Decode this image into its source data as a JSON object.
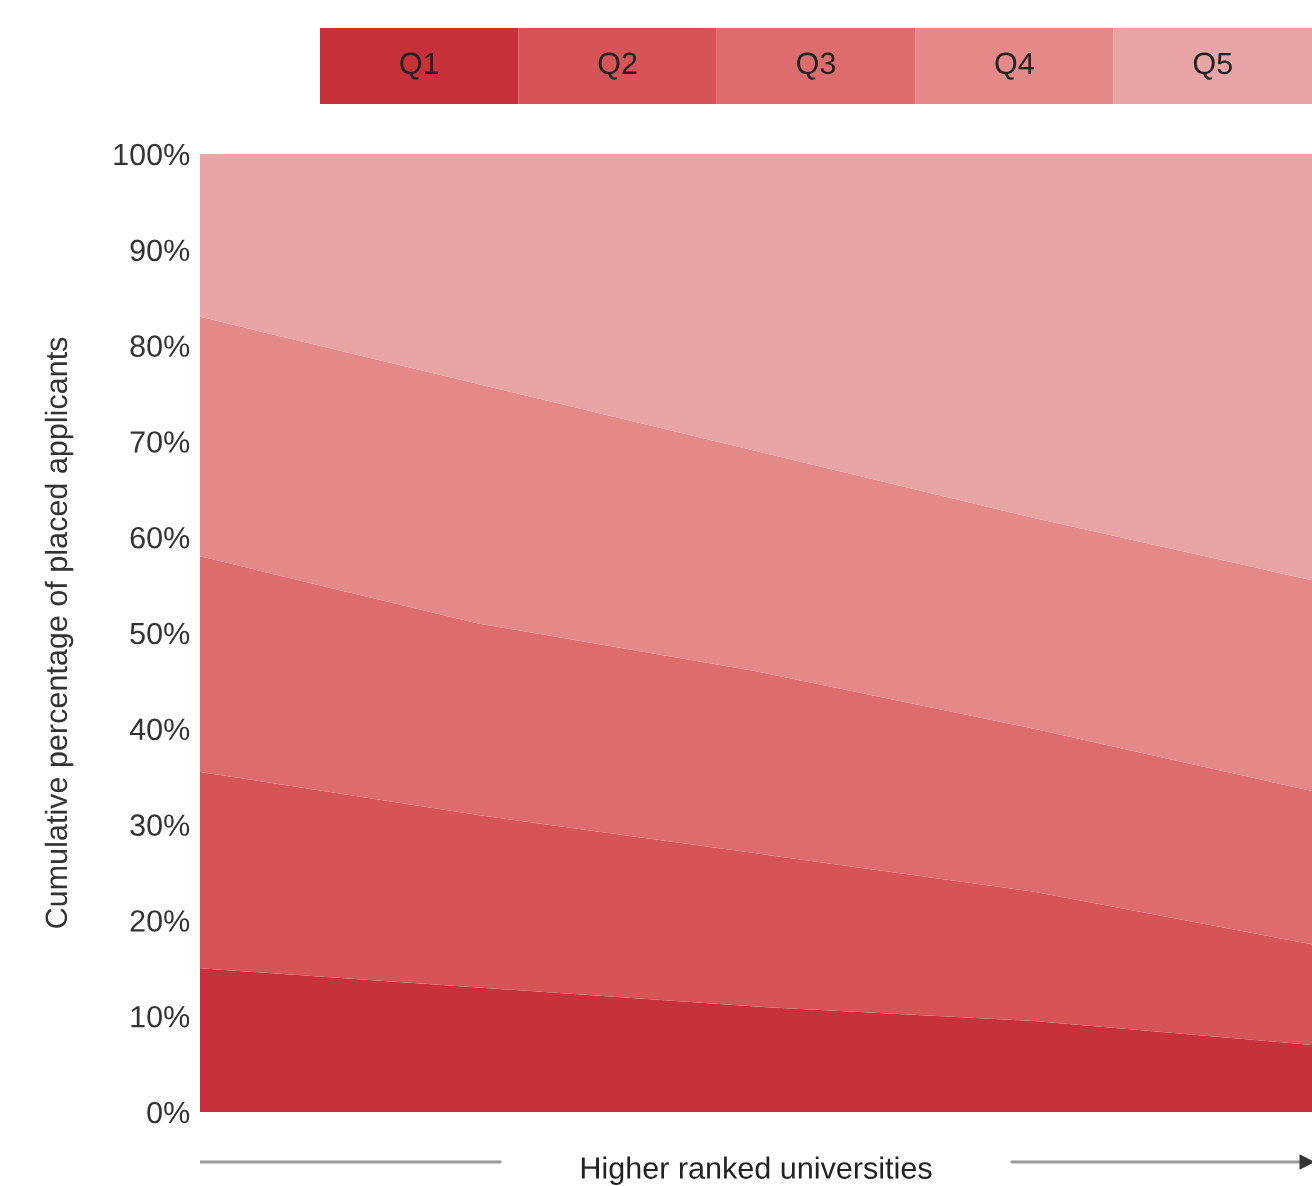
{
  "chart_data": {
    "type": "area",
    "stacked": true,
    "ylabel": "Cumulative percentage of placed applicants",
    "xlabel": "Higher ranked universities",
    "categories": [
      null,
      null,
      null,
      null,
      null
    ],
    "series": [
      {
        "name": "Q1",
        "color": "#c8303a",
        "values": [
          15,
          13,
          11,
          9.5,
          7
        ]
      },
      {
        "name": "Q2",
        "color": "#d65356",
        "values": [
          20.5,
          18,
          16,
          13.5,
          10.5
        ]
      },
      {
        "name": "Q3",
        "color": "#de6c6c",
        "values": [
          22.5,
          20,
          19,
          17,
          16
        ]
      },
      {
        "name": "Q4",
        "color": "#e58888",
        "values": [
          25,
          25,
          23,
          22,
          22
        ]
      },
      {
        "name": "Q5",
        "color": "#e9a4a6",
        "values": [
          17,
          24,
          31,
          38,
          44.5
        ]
      }
    ],
    "ylim": [
      0,
      100
    ],
    "yticks": [
      {
        "value": 0,
        "label": "0%"
      },
      {
        "value": 10,
        "label": "10%"
      },
      {
        "value": 20,
        "label": "20%"
      },
      {
        "value": 30,
        "label": "30%"
      },
      {
        "value": 40,
        "label": "40%"
      },
      {
        "value": 50,
        "label": "50%"
      },
      {
        "value": 60,
        "label": "60%"
      },
      {
        "value": 70,
        "label": "70%"
      },
      {
        "value": 80,
        "label": "80%"
      },
      {
        "value": 90,
        "label": "90%"
      },
      {
        "value": 100,
        "label": "100%"
      }
    ],
    "tick_labels": "y",
    "legend": "top",
    "grid": false
  }
}
